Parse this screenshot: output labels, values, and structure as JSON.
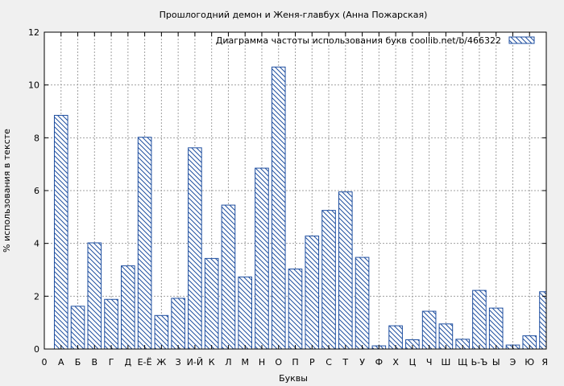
{
  "chart_data": {
    "type": "bar",
    "title": "Прошлогодний демон и Женя-главбух (Анна Пожарская)",
    "xlabel": "Буквы",
    "ylabel": "% использования в тексте",
    "ylim": [
      0,
      12
    ],
    "yticks": [
      0,
      2,
      4,
      6,
      8,
      10,
      12
    ],
    "grid": true,
    "legend_position": "top-right",
    "colors": {
      "bar": "#1f4fa0",
      "grid": "#a0a0a0",
      "background": "#f0f0f0",
      "plot_background": "#ffffff"
    },
    "x_tick_labels": [
      "0",
      "А",
      "Б",
      "В",
      "Г",
      "Д",
      "Е-Ё",
      "Ж",
      "З",
      "И-Й",
      "К",
      "Л",
      "М",
      "Н",
      "О",
      "П",
      "Р",
      "С",
      "Т",
      "У",
      "Ф",
      "Х",
      "Ц",
      "Ч",
      "Ш",
      "Щ",
      "Ь-Ъ",
      "Ы",
      "Э",
      "Ю",
      "Я"
    ],
    "series": [
      {
        "name": "Диаграмма частоты использования букв  coollib.net/b/466322",
        "categories": [
          "А",
          "Б",
          "В",
          "Г",
          "Д",
          "Е-Ё",
          "Ж",
          "З",
          "И-Й",
          "К",
          "Л",
          "М",
          "Н",
          "О",
          "П",
          "Р",
          "С",
          "Т",
          "У",
          "Ф",
          "Х",
          "Ц",
          "Ч",
          "Ш",
          "Щ",
          "Ь-Ъ",
          "Ы",
          "Э",
          "Ю",
          "Я"
        ],
        "values": [
          8.85,
          1.62,
          4.02,
          1.88,
          3.15,
          8.02,
          1.27,
          1.92,
          7.62,
          3.43,
          5.45,
          2.73,
          6.85,
          10.68,
          3.03,
          4.28,
          5.25,
          5.95,
          3.47,
          0.12,
          0.88,
          0.35,
          1.43,
          0.95,
          0.37,
          2.22,
          1.55,
          0.15,
          0.5,
          2.17
        ]
      }
    ]
  }
}
